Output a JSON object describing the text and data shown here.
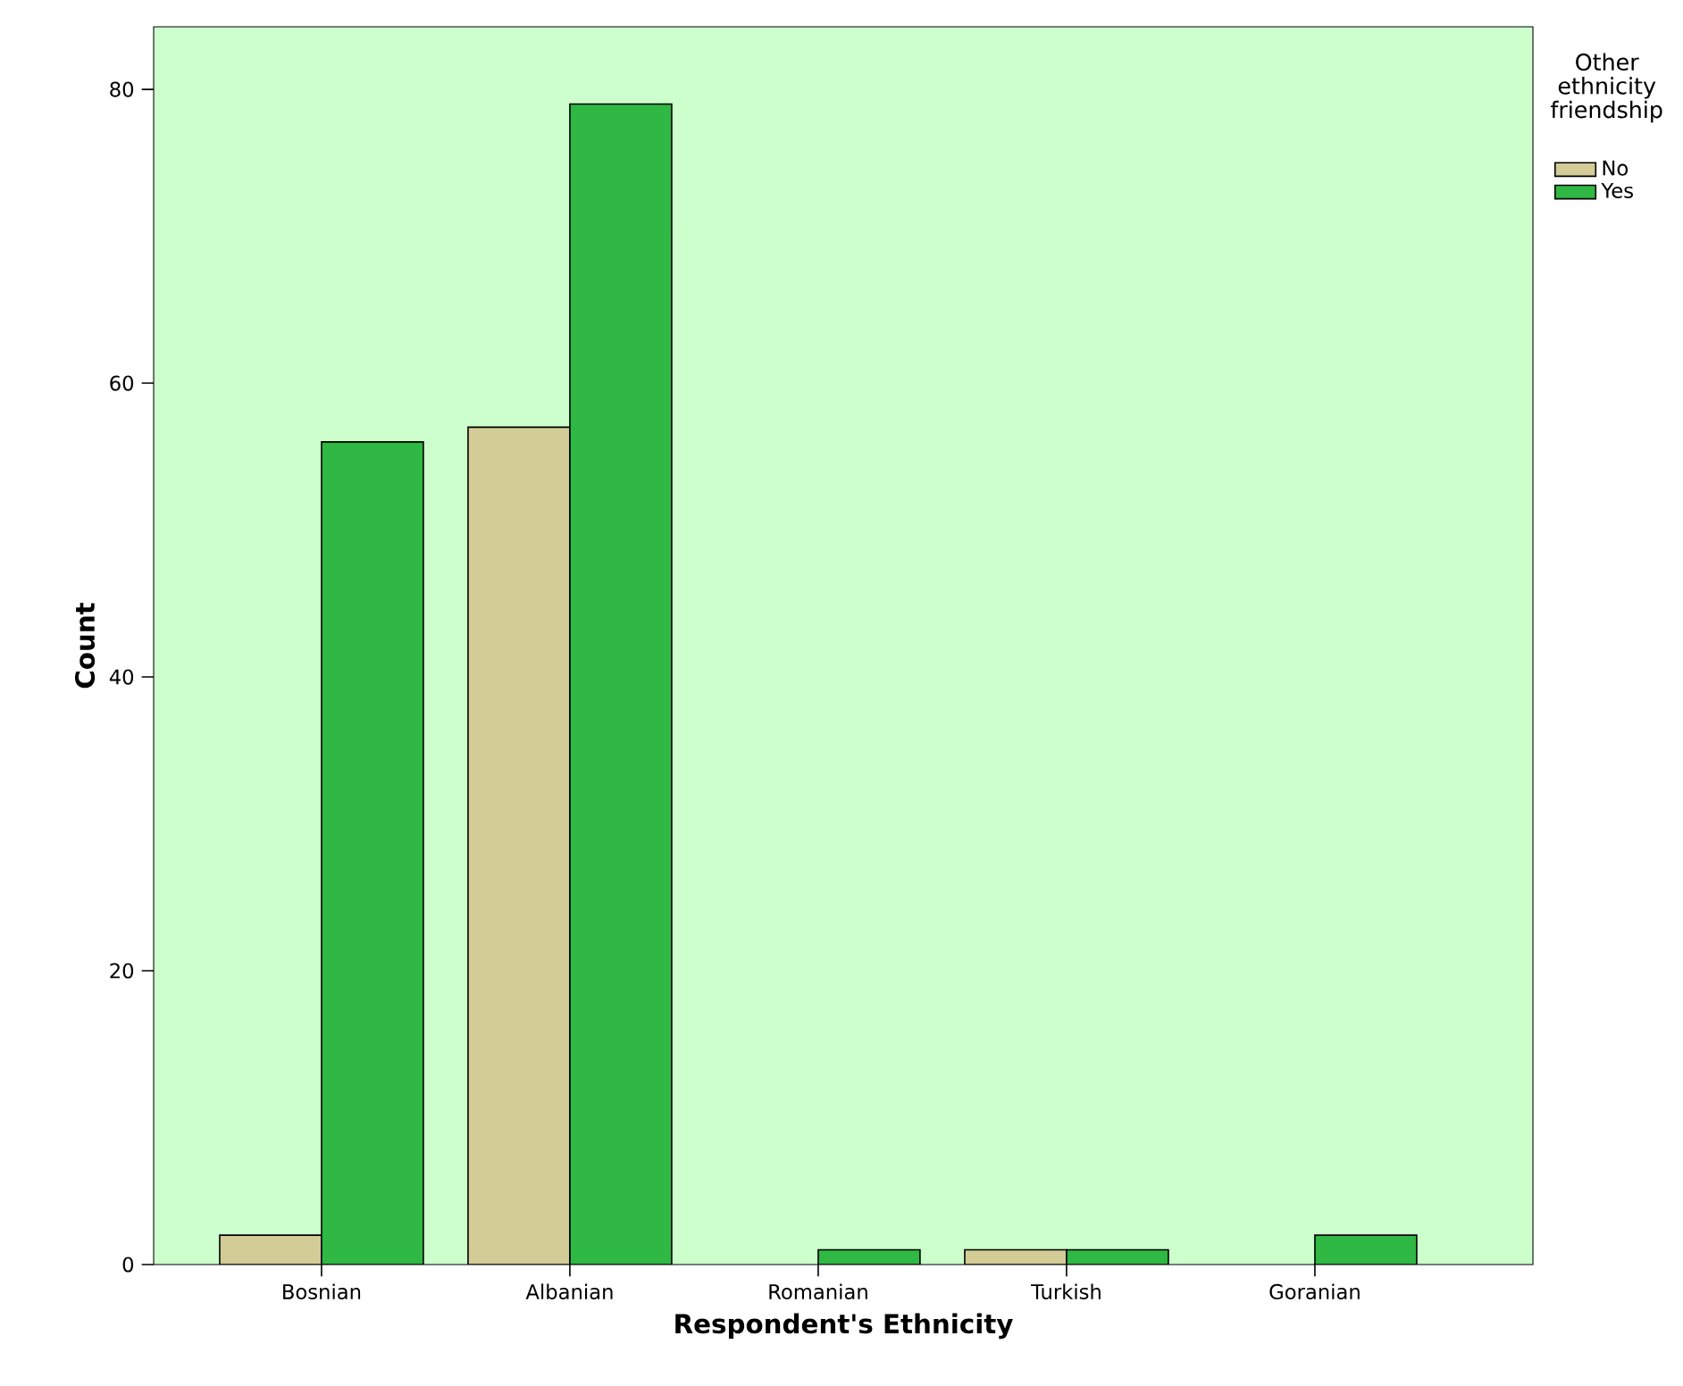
{
  "chart_data": {
    "type": "bar",
    "xlabel": "Respondent's Ethnicity",
    "ylabel": "Count",
    "legend_title": "Other ethnicity friendship",
    "legend": "top right",
    "categories": [
      "Bosnian",
      "Albanian",
      "Romanian",
      "Turkish",
      "Goranian"
    ],
    "series": [
      {
        "name": "No",
        "color": "#d3cc97",
        "values": [
          2,
          57,
          null,
          1,
          null
        ]
      },
      {
        "name": "Yes",
        "color": "#2fb844",
        "values": [
          56,
          79,
          1,
          1,
          2
        ]
      }
    ],
    "ylim": [
      0,
      84.26
    ],
    "yticks": [
      0,
      20,
      40,
      60,
      80
    ]
  }
}
